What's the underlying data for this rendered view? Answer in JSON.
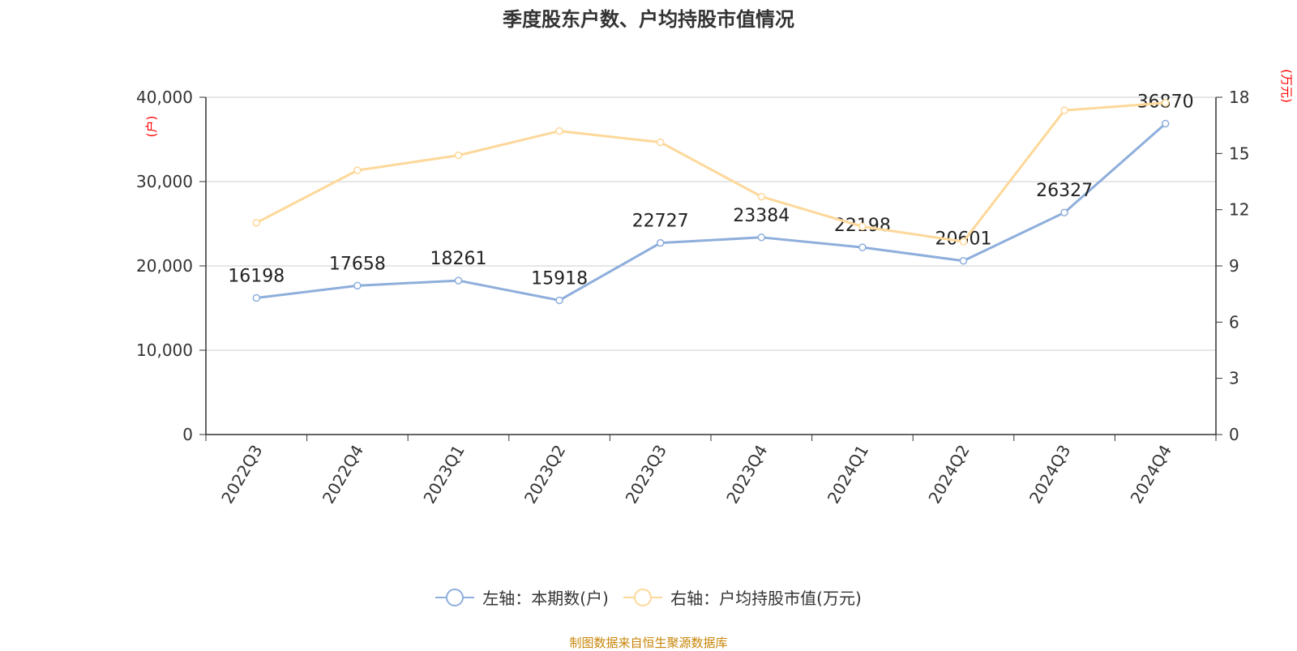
{
  "chart_title": "季度股东户数、户均持股市值情况",
  "source_text": "制图数据来自恒生聚源数据库",
  "legend": {
    "left_label": "左轴：本期数(户)",
    "right_label": "右轴：户均持股市值(万元)"
  },
  "axes": {
    "left_unit": "(户)",
    "right_unit": "(万元)"
  },
  "colors": {
    "left_series": "#8eaedb",
    "right_series": "#fdd89a",
    "left_unit_color": "#ff0000",
    "right_unit_color": "#ff0000",
    "grid": "#cccccc",
    "axis": "#333333"
  },
  "chart_data": {
    "type": "line",
    "title": "季度股东户数、户均持股市值情况",
    "categories": [
      "2022Q3",
      "2022Q4",
      "2023Q1",
      "2023Q2",
      "2023Q3",
      "2023Q4",
      "2024Q1",
      "2024Q2",
      "2024Q3",
      "2024Q4"
    ],
    "left_axis": {
      "ylim": [
        0,
        40000
      ],
      "ticks": [
        0,
        10000,
        20000,
        30000,
        40000
      ],
      "tick_labels": [
        "0",
        "10,000",
        "20,000",
        "30,000",
        "40,000"
      ]
    },
    "right_axis": {
      "ylim": [
        0,
        18
      ],
      "ticks": [
        0,
        3,
        6,
        9,
        12,
        15,
        18
      ],
      "tick_labels": [
        "0",
        "3",
        "6",
        "9",
        "12",
        "15",
        "18"
      ]
    },
    "grid": true,
    "legend_position": "bottom",
    "series": [
      {
        "name": "左轴：本期数(户)",
        "axis": "left",
        "values": [
          16198,
          17658,
          18261,
          15918,
          22727,
          23384,
          22198,
          20601,
          26327,
          36870
        ],
        "data_labels": [
          "16198",
          "17658",
          "18261",
          "15918",
          "22727",
          "23384",
          "22198",
          "20601",
          "26327",
          "36870"
        ]
      },
      {
        "name": "右轴：户均持股市值(万元)",
        "axis": "right",
        "values": [
          11.3,
          14.1,
          14.9,
          16.2,
          15.6,
          12.7,
          11.1,
          10.3,
          17.3,
          17.7
        ]
      }
    ]
  }
}
